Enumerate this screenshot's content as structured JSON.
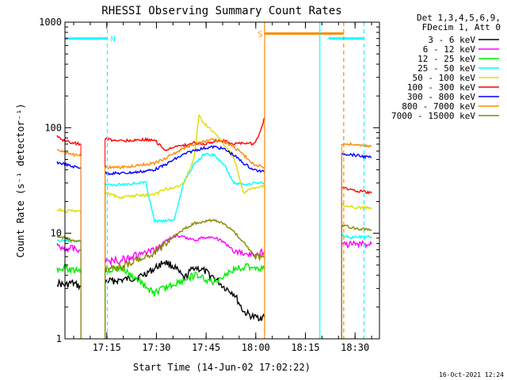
{
  "chart_data": {
    "type": "line",
    "title": "RHESSI Observing Summary Count Rates",
    "xlabel": "Start Time (14-Jun-02 17:02:22)",
    "ylabel": "Count Rate (s⁻¹ detector⁻¹)",
    "yscale": "log",
    "ylim": [
      1,
      1000
    ],
    "xlim_min": [
      0,
      48
    ],
    "y_ticks": [
      {
        "value": 1,
        "label": "1"
      },
      {
        "value": 10,
        "label": "10"
      },
      {
        "value": 100,
        "label": "100"
      },
      {
        "value": 1000,
        "label": "1000"
      }
    ],
    "x_ticks": [
      {
        "value": 12.63,
        "label": "17:15"
      },
      {
        "value": 27.63,
        "label": "17:30"
      },
      {
        "value": 42.63,
        "label": "17:45"
      },
      {
        "value": 57.63,
        "label": "18:00"
      },
      {
        "value": 72.63,
        "label": "18:15"
      },
      {
        "value": 87.63,
        "label": "18:30"
      }
    ],
    "legend": {
      "position": "top-right-outside",
      "header": [
        "Det 1,3,4,5,6,9,",
        "FDecim 1, Att 0"
      ],
      "entries": [
        {
          "name": "3 - 6 keV",
          "color": "#000000"
        },
        {
          "name": "6 - 12 keV",
          "color": "#ff00ff"
        },
        {
          "name": "12 - 25 keV",
          "color": "#00ee00"
        },
        {
          "name": "25 - 50 keV",
          "color": "#00ffff"
        },
        {
          "name": "50 - 100 keV",
          "color": "#dddd00"
        },
        {
          "name": "100 - 300 keV",
          "color": "#ff0000"
        },
        {
          "name": "300 - 800 keV",
          "color": "#0000ff"
        },
        {
          "name": "800 - 7000 keV",
          "color": "#ff8800"
        },
        {
          "name": "7000 - 15000 keV",
          "color": "#888800"
        }
      ]
    },
    "annotations": [
      {
        "text": "N",
        "color": "#00ffff",
        "x": 14.5,
        "y": 700
      },
      {
        "text": "S",
        "color": "#ff8800",
        "x": 59.0,
        "y": 780
      }
    ],
    "markers": {
      "night_bars": [
        {
          "x": [
            -2.4,
            12.8
          ],
          "y": 700
        },
        {
          "x": [
            79.6,
            90.3
          ],
          "y": 700
        }
      ],
      "saa_bar": {
        "x": [
          60.3,
          84.2
        ],
        "y": 780
      },
      "solid_lines": [
        {
          "x": 60.3,
          "color": "#ff8800"
        },
        {
          "x": 77.0,
          "color": "#00ffff"
        }
      ],
      "dashed_lines": [
        {
          "x": 12.8,
          "color": "#00ffff"
        },
        {
          "x": 84.2,
          "color": "#ff8800"
        },
        {
          "x": 90.3,
          "color": "#00ffff"
        }
      ]
    },
    "gaps": [
      [
        4.8,
        12.1
      ],
      [
        60.3,
        83.6
      ]
    ],
    "series": [
      {
        "name": "3 - 6 keV",
        "color": "#000000",
        "segments": [
          {
            "x": [
              -2.4,
              0,
              2,
              4.8
            ],
            "y": [
              3.4,
              3.2,
              3.4,
              3.1
            ]
          },
          {
            "x": [
              12.1,
              17,
              22,
              27,
              30,
              33,
              36,
              39,
              42,
              45,
              48,
              51,
              54,
              57,
              60.3
            ],
            "y": [
              3.5,
              3.6,
              3.8,
              4.6,
              5.4,
              4.8,
              3.7,
              4.8,
              4.4,
              3.8,
              3.1,
              2.7,
              1.8,
              1.6,
              1.6
            ]
          }
        ]
      },
      {
        "name": "6 - 12 keV",
        "color": "#ff00ff",
        "segments": [
          {
            "x": [
              -2.4,
              0,
              2,
              4.8
            ],
            "y": [
              7.6,
              7.2,
              7.3,
              7.0
            ]
          },
          {
            "x": [
              12.1,
              17,
              22,
              27,
              30,
              33,
              36,
              39,
              42,
              45,
              48,
              51,
              54,
              57,
              60.3
            ],
            "y": [
              5.4,
              5.6,
              6.2,
              6.8,
              8.3,
              9.4,
              9.2,
              8.6,
              9.1,
              9.2,
              8.2,
              6.8,
              6.4,
              6.2,
              6.7
            ]
          },
          {
            "x": [
              83.6,
              86,
              89,
              92.6
            ],
            "y": [
              7.8,
              7.9,
              7.8,
              7.9
            ]
          }
        ]
      },
      {
        "name": "12 - 25 keV",
        "color": "#00ee00",
        "segments": [
          {
            "x": [
              -2.4,
              0,
              2,
              4.8
            ],
            "y": [
              4.6,
              4.8,
              4.4,
              4.6
            ]
          },
          {
            "x": [
              12.1,
              17,
              22,
              27,
              30,
              33,
              36,
              39,
              42,
              45,
              48,
              51,
              54,
              57,
              60.3
            ],
            "y": [
              4.5,
              4.6,
              3.6,
              2.7,
              3.0,
              3.3,
              3.6,
              4.0,
              3.7,
              3.4,
              4.0,
              4.5,
              4.8,
              4.8,
              4.6
            ]
          }
        ]
      },
      {
        "name": "25 - 50 keV",
        "color": "#00ffff",
        "segments": [
          {
            "x": [
              -2.4,
              0,
              2,
              4.8
            ],
            "y": [
              8.6,
              8.4,
              8.5,
              8.4
            ]
          },
          {
            "x": [
              12.1,
              17,
              22,
              24.5,
              27,
              30,
              33,
              36,
              39,
              42,
              45,
              48,
              51,
              54,
              57,
              60.3
            ],
            "y": [
              29,
              29,
              30,
              30,
              13,
              13,
              13.5,
              31,
              45,
              56,
              55,
              45,
              30,
              29,
              30,
              30
            ]
          },
          {
            "x": [
              83.6,
              86,
              89,
              92.6
            ],
            "y": [
              9.6,
              9.2,
              9.2,
              9.3
            ]
          }
        ]
      },
      {
        "name": "50 - 100 keV",
        "color": "#dddd00",
        "segments": [
          {
            "x": [
              -2.4,
              0,
              2,
              4.8
            ],
            "y": [
              17,
              16,
              16.5,
              16
            ]
          },
          {
            "x": [
              12.1,
              17,
              22,
              27,
              30,
              33,
              36,
              39,
              40.5,
              42,
              45,
              48,
              51,
              54,
              57,
              60.3
            ],
            "y": [
              24,
              22,
              23,
              23,
              26,
              27,
              30,
              52,
              130,
              110,
              90,
              70,
              52,
              24,
              27,
              28
            ]
          },
          {
            "x": [
              83.6,
              86,
              89,
              92.6
            ],
            "y": [
              18.5,
              18,
              17.5,
              17.5
            ]
          }
        ]
      },
      {
        "name": "100 - 300 keV",
        "color": "#ff0000",
        "segments": [
          {
            "x": [
              -2.4,
              0,
              2,
              4.8
            ],
            "y": [
              82,
              75,
              72,
              70
            ]
          },
          {
            "x": [
              12.1,
              17,
              22,
              27,
              30,
              33,
              36,
              39,
              42,
              45,
              48,
              51,
              54,
              57,
              59,
              60.3
            ],
            "y": [
              78,
              75,
              77,
              77,
              62,
              65,
              68,
              72,
              70,
              74,
              75,
              70,
              72,
              70,
              90,
              125
            ]
          },
          {
            "x": [
              83.6,
              86,
              89,
              92.6
            ],
            "y": [
              27,
              26,
              25,
              24
            ]
          }
        ]
      },
      {
        "name": "300 - 800 keV",
        "color": "#0000ff",
        "segments": [
          {
            "x": [
              -2.4,
              0,
              2,
              4.8
            ],
            "y": [
              47,
              45,
              43,
              42
            ]
          },
          {
            "x": [
              12.1,
              17,
              22,
              27,
              30,
              33,
              36,
              39,
              42,
              45,
              48,
              51,
              54,
              57,
              60.3
            ],
            "y": [
              37,
              37,
              38,
              40,
              44,
              50,
              56,
              61,
              64,
              66,
              63,
              55,
              46,
              40,
              38
            ]
          },
          {
            "x": [
              83.6,
              86,
              89,
              92.6
            ],
            "y": [
              57,
              56,
              54,
              52
            ]
          }
        ]
      },
      {
        "name": "800 - 7000 keV",
        "color": "#ff8800",
        "segments": [
          {
            "x": [
              -2.4,
              0,
              2,
              4.8
            ],
            "y": [
              62,
              58,
              56,
              54
            ]
          },
          {
            "x": [
              12.1,
              17,
              22,
              27,
              30,
              33,
              36,
              39,
              42,
              45,
              48,
              51,
              54,
              57,
              60.3
            ],
            "y": [
              42,
              42,
              44,
              46,
              51,
              57,
              64,
              70,
              74,
              77,
              74,
              66,
              55,
              45,
              42
            ]
          },
          {
            "x": [
              83.6,
              86,
              89,
              92.6
            ],
            "y": [
              70,
              70,
              68,
              67
            ]
          }
        ]
      },
      {
        "name": "7000 - 15000 keV",
        "color": "#888800",
        "segments": [
          {
            "x": [
              -2.4,
              0,
              2,
              4.8
            ],
            "y": [
              9.5,
              9.0,
              8.6,
              8.3
            ]
          },
          {
            "x": [
              12.1,
              17,
              22,
              27,
              30,
              33,
              36,
              39,
              42,
              45,
              48,
              51,
              54,
              57,
              60.3
            ],
            "y": [
              4.6,
              4.8,
              5.6,
              6.4,
              7.8,
              9.4,
              11,
              12.4,
              13,
              13.2,
              12.4,
              10.4,
              8.2,
              6.2,
              5.8
            ]
          },
          {
            "x": [
              83.6,
              86,
              89,
              92.6
            ],
            "y": [
              12,
              11.5,
              11,
              10.8
            ]
          }
        ]
      }
    ]
  },
  "footer": {
    "timestamp": "16-Oct-2021 12:24"
  }
}
